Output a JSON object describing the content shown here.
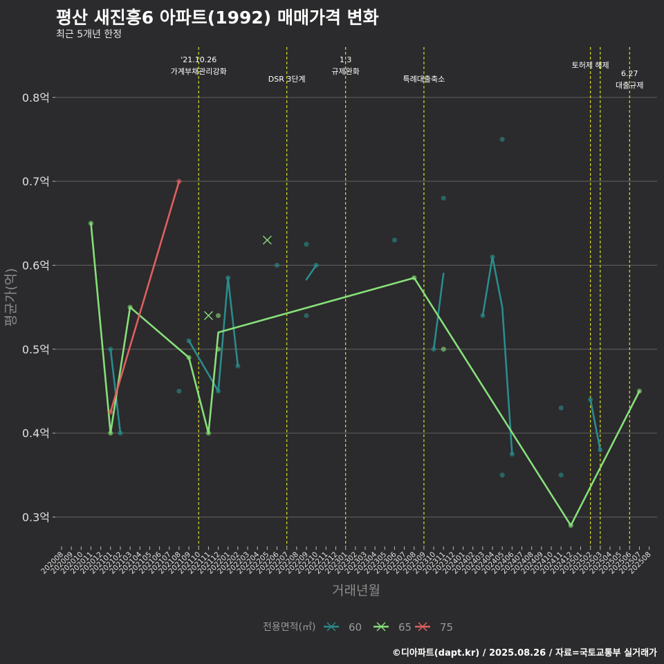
{
  "header": {
    "title": "평산 새진흥6 아파트(1992) 매매가격 변화",
    "subtitle": "최근 5개년 한정",
    "caption": "©디아파트(dapt.kr) / 2025.08.26 / 자료=국토교통부 실거래가"
  },
  "chart_data": {
    "type": "line",
    "xlabel": "거래년월",
    "ylabel": "평균가(억)",
    "ylim": [
      0.265,
      0.86
    ],
    "yticks": [
      0.3,
      0.4,
      0.5,
      0.6,
      0.7,
      0.8
    ],
    "ytick_labels": [
      "0.3억",
      "0.4억",
      "0.5억",
      "0.6억",
      "0.7억",
      "0.8억"
    ],
    "x_categories": [
      "202008",
      "202009",
      "202010",
      "202011",
      "202012",
      "202101",
      "202102",
      "202103",
      "202104",
      "202105",
      "202106",
      "202107",
      "202108",
      "202109",
      "202110",
      "202111",
      "202112",
      "202201",
      "202202",
      "202203",
      "202204",
      "202205",
      "202206",
      "202207",
      "202208",
      "202209",
      "202210",
      "202211",
      "202212",
      "202301",
      "202302",
      "202303",
      "202304",
      "202305",
      "202306",
      "202307",
      "202308",
      "202309",
      "202310",
      "202311",
      "202312",
      "202401",
      "202402",
      "202403",
      "202404",
      "202405",
      "202406",
      "202407",
      "202408",
      "202409",
      "202410",
      "202411",
      "202412",
      "202501",
      "202502",
      "202503",
      "202504",
      "202505",
      "202506",
      "202507",
      "202508"
    ],
    "grid": true,
    "legend": {
      "title": "전용면적(㎡)",
      "position": "bottom",
      "entries": [
        "60",
        "65",
        "75"
      ]
    },
    "colors": {
      "s60": "#2a8c8c",
      "s65": "#86e07a",
      "s75": "#e06060",
      "event_line": "#d6df2a",
      "background": "#2b2a2c",
      "grid": "#5a5a5a"
    },
    "series": [
      {
        "name": "60",
        "lines": [
          [
            [
              "202101",
              0.5
            ],
            [
              "202102",
              0.4
            ]
          ],
          [
            [
              "202109",
              0.51
            ],
            [
              "202110",
              0.49
            ],
            [
              "202112",
              0.45
            ]
          ],
          [
            [
              "202112",
              0.45
            ],
            [
              "202201",
              0.585
            ],
            [
              "202202",
              0.48
            ]
          ],
          [
            [
              "202209",
              0.583
            ],
            [
              "202210",
              0.6
            ]
          ],
          [
            [
              "202310",
              0.5
            ],
            [
              "202311",
              0.59
            ]
          ],
          [
            [
              "202403",
              0.54
            ],
            [
              "202404",
              0.61
            ],
            [
              "202405",
              0.55
            ],
            [
              "202406",
              0.375
            ]
          ],
          [
            [
              "202502",
              0.44
            ],
            [
              "202503",
              0.38
            ]
          ]
        ],
        "points": [
          [
            "202101",
            0.5
          ],
          [
            "202102",
            0.4
          ],
          [
            "202108",
            0.45
          ],
          [
            "202109",
            0.51
          ],
          [
            "202112",
            0.45
          ],
          [
            "202201",
            0.585
          ],
          [
            "202202",
            0.48
          ],
          [
            "202206",
            0.6
          ],
          [
            "202209",
            0.625
          ],
          [
            "202209",
            0.54
          ],
          [
            "202210",
            0.6
          ],
          [
            "202306",
            0.63
          ],
          [
            "202310",
            0.5
          ],
          [
            "202311",
            0.68
          ],
          [
            "202403",
            0.54
          ],
          [
            "202404",
            0.61
          ],
          [
            "202405",
            0.75
          ],
          [
            "202405",
            0.35
          ],
          [
            "202406",
            0.375
          ],
          [
            "202411",
            0.43
          ],
          [
            "202411",
            0.35
          ],
          [
            "202502",
            0.44
          ],
          [
            "202503",
            0.38
          ]
        ]
      },
      {
        "name": "65",
        "lines": [
          [
            [
              "202011",
              0.65
            ],
            [
              "202101",
              0.4
            ],
            [
              "202103",
              0.55
            ],
            [
              "202109",
              0.49
            ],
            [
              "202111",
              0.4
            ],
            [
              "202112",
              0.52
            ],
            [
              "202308",
              0.585
            ],
            [
              "202412",
              0.29
            ],
            [
              "202507",
              0.45
            ]
          ]
        ],
        "points": [
          [
            "202011",
            0.65
          ],
          [
            "202101",
            0.4
          ],
          [
            "202103",
            0.55
          ],
          [
            "202109",
            0.49
          ],
          [
            "202111",
            0.4
          ],
          [
            "202112",
            0.54
          ],
          [
            "202112",
            0.5
          ],
          [
            "202311",
            0.5
          ],
          [
            "202308",
            0.585
          ],
          [
            "202412",
            0.29
          ],
          [
            "202507",
            0.45
          ]
        ],
        "crosses": [
          [
            "202111",
            0.54
          ],
          [
            "202205",
            0.63
          ]
        ]
      },
      {
        "name": "75",
        "lines": [
          [
            [
              "202101",
              0.425
            ],
            [
              "202108",
              0.7
            ]
          ]
        ],
        "points": [
          [
            "202101",
            0.425
          ],
          [
            "202108",
            0.7
          ]
        ]
      }
    ],
    "events": [
      {
        "x": "202110",
        "lines": [
          "'21.10.26",
          "가계부채관리강화"
        ],
        "row": 0
      },
      {
        "x": "202207",
        "lines": [
          "DSR 3단계"
        ],
        "row": 1
      },
      {
        "x": "202301",
        "lines": [
          "1.3",
          "규제완화"
        ],
        "row": 0
      },
      {
        "x": "202309",
        "lines": [
          "특례대출축소"
        ],
        "row": 1
      },
      {
        "x": "202502",
        "lines": [
          "토허제 해제"
        ],
        "row": 2
      },
      {
        "x": "202503",
        "lines": [],
        "row": 2
      },
      {
        "x": "202506",
        "lines": [
          "6.27",
          "대출규제"
        ],
        "row": 3
      }
    ]
  }
}
